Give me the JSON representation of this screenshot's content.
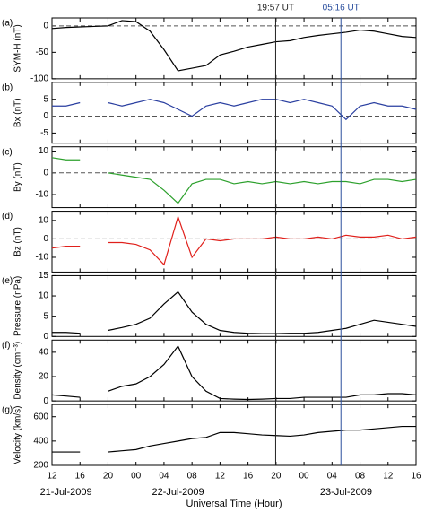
{
  "x_axis": {
    "label": "Universal Time (Hour)",
    "xlim": [
      12,
      64
    ],
    "xticks": [
      {
        "value": 12,
        "label": "12"
      },
      {
        "value": 16,
        "label": "16"
      },
      {
        "value": 20,
        "label": "20"
      },
      {
        "value": 24,
        "label": "00"
      },
      {
        "value": 28,
        "label": "04"
      },
      {
        "value": 32,
        "label": "08"
      },
      {
        "value": 36,
        "label": "12"
      },
      {
        "value": 40,
        "label": "16"
      },
      {
        "value": 44,
        "label": "20"
      },
      {
        "value": 48,
        "label": "00"
      },
      {
        "value": 52,
        "label": "04"
      },
      {
        "value": 56,
        "label": "08"
      },
      {
        "value": 60,
        "label": "12"
      },
      {
        "value": 64,
        "label": "16"
      }
    ],
    "dates": [
      {
        "value": 14,
        "label": "21-Jul-2009"
      },
      {
        "value": 30,
        "label": "22-Jul-2009"
      },
      {
        "value": 54,
        "label": "23-Jul-2009"
      }
    ]
  },
  "annotations": [
    {
      "x": 43.95,
      "label": "19:57 UT",
      "color": "#222222"
    },
    {
      "x": 53.27,
      "label": "05:16 UT",
      "color": "#2b4f9e"
    }
  ],
  "chart_data": [
    {
      "type": "line",
      "panel": "(a)",
      "ylabel": "SYM-H (nT)",
      "ylim": [
        -100,
        15
      ],
      "yticks": [
        -100,
        -50,
        0
      ],
      "reference_line": 0,
      "x": [
        12,
        14,
        16,
        18,
        20,
        22,
        24,
        26,
        28,
        30,
        32,
        34,
        36,
        38,
        40,
        42,
        44,
        46,
        48,
        50,
        52,
        54,
        56,
        58,
        60,
        62,
        64
      ],
      "series": [
        {
          "color": "#000000",
          "values": [
            -5,
            -3,
            -2,
            -1,
            0,
            10,
            8,
            -10,
            -45,
            -85,
            -80,
            -75,
            -55,
            -48,
            -40,
            -35,
            -30,
            -28,
            -22,
            -18,
            -15,
            -12,
            -8,
            -10,
            -15,
            -20,
            -22
          ]
        }
      ]
    },
    {
      "type": "line",
      "panel": "(b)",
      "ylabel": "Bx (nT)",
      "ylim": [
        -8,
        10
      ],
      "yticks": [
        -5,
        0,
        5
      ],
      "reference_line": 0,
      "x": [
        12,
        14,
        16,
        18,
        20,
        22,
        24,
        26,
        28,
        30,
        32,
        34,
        36,
        38,
        40,
        42,
        44,
        46,
        48,
        50,
        52,
        54,
        56,
        58,
        60,
        62,
        64
      ],
      "series": [
        {
          "color": "#2a3fa0",
          "values": [
            3,
            3,
            4,
            null,
            4,
            3,
            4,
            5,
            4,
            2,
            0,
            3,
            4,
            3,
            4,
            5,
            5,
            4,
            5,
            4,
            3,
            -1,
            3,
            4,
            3,
            3,
            2
          ]
        }
      ]
    },
    {
      "type": "line",
      "panel": "(c)",
      "ylabel": "By (nT)",
      "ylim": [
        -16,
        12
      ],
      "yticks": [
        -10,
        0,
        10
      ],
      "reference_line": 0,
      "x": [
        12,
        14,
        16,
        18,
        20,
        22,
        24,
        26,
        28,
        30,
        32,
        34,
        36,
        38,
        40,
        42,
        44,
        46,
        48,
        50,
        52,
        54,
        56,
        58,
        60,
        62,
        64
      ],
      "series": [
        {
          "color": "#2ca02c",
          "values": [
            7,
            6,
            6,
            null,
            0,
            -1,
            -2,
            -3,
            -8,
            -14,
            -5,
            -3,
            -3,
            -5,
            -4,
            -5,
            -4,
            -5,
            -4,
            -5,
            -4,
            -4,
            -5,
            -3,
            -3,
            -4,
            -3
          ]
        }
      ]
    },
    {
      "type": "line",
      "panel": "(d)",
      "ylabel": "Bz (nT)",
      "ylim": [
        -18,
        15
      ],
      "yticks": [
        -10,
        0,
        10
      ],
      "reference_line": 0,
      "x": [
        12,
        14,
        16,
        18,
        20,
        22,
        24,
        26,
        28,
        30,
        32,
        34,
        36,
        38,
        40,
        42,
        44,
        46,
        48,
        50,
        52,
        54,
        56,
        58,
        60,
        62,
        64
      ],
      "series": [
        {
          "color": "#e0201b",
          "values": [
            -5,
            -4,
            -4,
            null,
            -2,
            -2,
            -3,
            -6,
            -14,
            12,
            -10,
            0,
            -1,
            0,
            0,
            0,
            1,
            0,
            0,
            1,
            0,
            2,
            1,
            1,
            2,
            0,
            1
          ]
        }
      ]
    },
    {
      "type": "line",
      "panel": "(e)",
      "ylabel": "Pressure (nPa)",
      "ylim": [
        0,
        15
      ],
      "yticks": [
        0,
        5,
        10,
        15
      ],
      "x": [
        12,
        14,
        16,
        18,
        20,
        22,
        24,
        26,
        28,
        30,
        32,
        34,
        36,
        38,
        40,
        42,
        44,
        46,
        48,
        50,
        52,
        54,
        56,
        58,
        60,
        62,
        64
      ],
      "series": [
        {
          "color": "#000000",
          "values": [
            1,
            1,
            0.8,
            null,
            1.5,
            2.2,
            3,
            4.5,
            8,
            11,
            6,
            3,
            1.5,
            1,
            0.8,
            0.7,
            0.7,
            0.8,
            0.8,
            1,
            1.5,
            2,
            3,
            4,
            3.5,
            3,
            2.5
          ]
        }
      ]
    },
    {
      "type": "line",
      "panel": "(f)",
      "ylabel": "Density (cm⁻³)",
      "ylim": [
        0,
        50
      ],
      "yticks": [
        0,
        20,
        40
      ],
      "x": [
        12,
        14,
        16,
        18,
        20,
        22,
        24,
        26,
        28,
        30,
        32,
        34,
        36,
        38,
        40,
        42,
        44,
        46,
        48,
        50,
        52,
        54,
        56,
        58,
        60,
        62,
        64
      ],
      "series": [
        {
          "color": "#000000",
          "values": [
            5,
            4,
            3,
            null,
            8,
            12,
            14,
            20,
            30,
            45,
            20,
            8,
            2,
            1.5,
            1.2,
            1.5,
            2,
            2,
            3,
            3,
            3,
            3,
            5,
            5,
            6,
            6,
            5
          ]
        }
      ]
    },
    {
      "type": "line",
      "panel": "(g)",
      "ylabel": "Velocity (km/s)",
      "ylim": [
        200,
        700
      ],
      "yticks": [
        200,
        400,
        600
      ],
      "x": [
        12,
        14,
        16,
        18,
        20,
        22,
        24,
        26,
        28,
        30,
        32,
        34,
        36,
        38,
        40,
        42,
        44,
        46,
        48,
        50,
        52,
        54,
        56,
        58,
        60,
        62,
        64
      ],
      "series": [
        {
          "color": "#000000",
          "values": [
            310,
            310,
            310,
            null,
            310,
            320,
            330,
            360,
            380,
            400,
            420,
            430,
            470,
            470,
            460,
            450,
            445,
            440,
            450,
            470,
            480,
            490,
            490,
            500,
            510,
            520,
            520
          ]
        }
      ]
    }
  ]
}
